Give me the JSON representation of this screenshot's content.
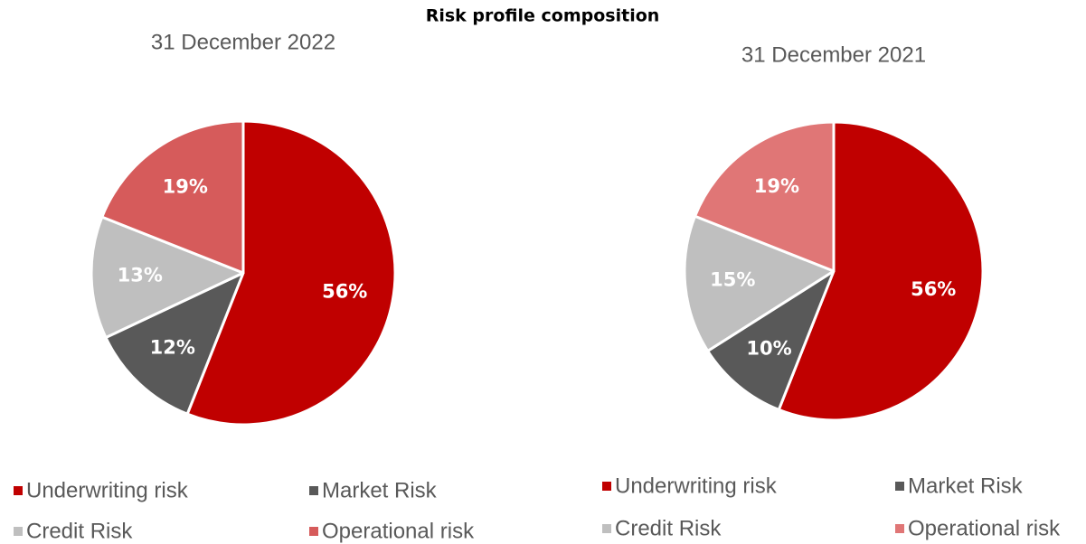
{
  "title": "Risk profile composition",
  "chart_data": [
    {
      "type": "pie",
      "title": "31 December 2022",
      "categories": [
        "Underwriting risk",
        "Market Risk",
        "Credit Risk",
        "Operational risk"
      ],
      "values": [
        56,
        12,
        13,
        19
      ],
      "value_labels": [
        "56%",
        "12%",
        "13%",
        "19%"
      ],
      "colors": [
        "#c00000",
        "#595959",
        "#bfbfbf",
        "#d65b5b"
      ]
    },
    {
      "type": "pie",
      "title": "31 December 2021",
      "categories": [
        "Underwriting risk",
        "Market Risk",
        "Credit Risk",
        "Operational risk"
      ],
      "values": [
        56,
        10,
        15,
        19
      ],
      "value_labels": [
        "56%",
        "10%",
        "15%",
        "19%"
      ],
      "colors": [
        "#c00000",
        "#595959",
        "#bfbfbf",
        "#e07676"
      ]
    }
  ]
}
